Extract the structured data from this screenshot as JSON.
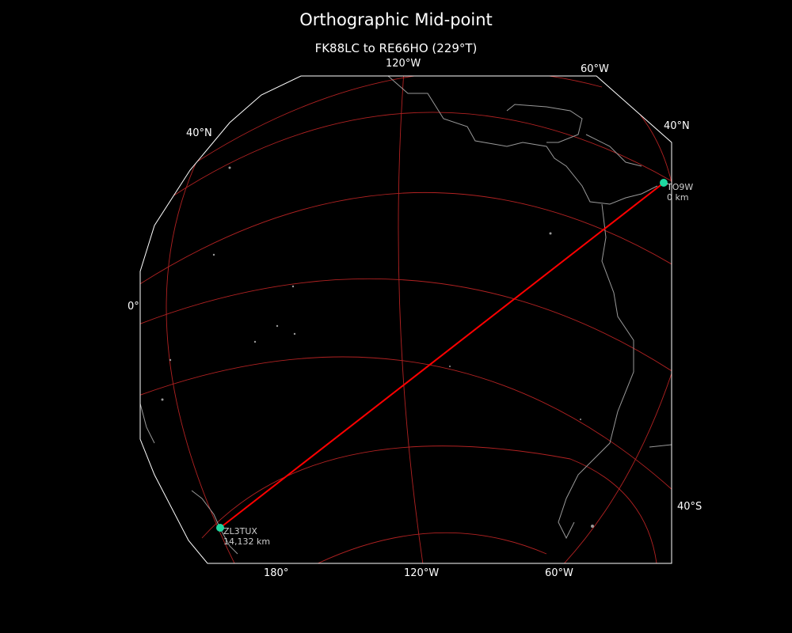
{
  "title": "Orthographic Mid-point",
  "subtitle": "FK88LC to RE66HO (229°T)",
  "graticule_labels": {
    "top": [
      "120°W",
      "60°W"
    ],
    "bottom": [
      "180°",
      "120°W",
      "60°W"
    ],
    "left": [
      "40°N",
      "0°"
    ],
    "right": [
      "40°N",
      "40°S"
    ]
  },
  "stations": [
    {
      "call": "TO9W",
      "distance": "0 km",
      "color": "#1dd8a0"
    },
    {
      "call": "ZL3TUX",
      "distance": "14,132 km",
      "color": "#1dd8a0"
    }
  ],
  "colors": {
    "path": "#ff0000",
    "graticule": "#b22222",
    "coast": "#999999",
    "border": "#ffffff",
    "background": "#000000"
  }
}
